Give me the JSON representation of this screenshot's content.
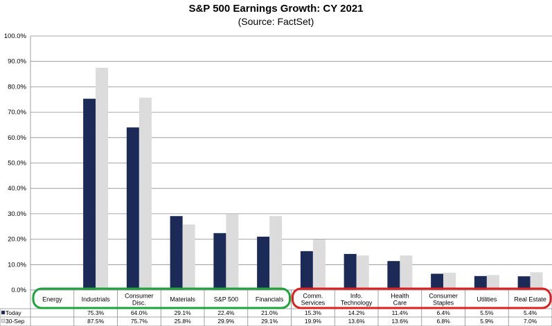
{
  "chart_data": {
    "type": "bar",
    "title": "S&P 500 Earnings Growth: CY 2021",
    "subtitle": "(Source: FactSet)",
    "categories": [
      [
        "Energy"
      ],
      [
        "Industrials"
      ],
      [
        "Consumer",
        "Disc."
      ],
      [
        "Materials"
      ],
      [
        "S&P 500"
      ],
      [
        "Financials"
      ],
      [
        "Comm.",
        "Services"
      ],
      [
        "Info.",
        "Technology"
      ],
      [
        "Health",
        "Care"
      ],
      [
        "Consumer",
        "Staples"
      ],
      [
        "Utilities"
      ],
      [
        "Real Estate"
      ]
    ],
    "series": [
      {
        "name": "Today",
        "color": "#1b2a57",
        "values": [
          null,
          75.3,
          64.0,
          29.1,
          22.4,
          21.0,
          15.3,
          14.2,
          11.4,
          6.4,
          5.5,
          5.4
        ],
        "labels": [
          "",
          "75.3%",
          "64.0%",
          "29.1%",
          "22.4%",
          "21.0%",
          "15.3%",
          "14.2%",
          "11.4%",
          "6.4%",
          "5.5%",
          "5.4%"
        ]
      },
      {
        "name": "30-Sep",
        "color": "#dcdcdc",
        "values": [
          null,
          87.5,
          75.7,
          25.8,
          29.9,
          29.1,
          19.9,
          13.6,
          13.6,
          6.8,
          5.9,
          7.0
        ],
        "labels": [
          "",
          "87.5%",
          "75.7%",
          "25.8%",
          "29.9%",
          "29.1%",
          "19.9%",
          "13.6%",
          "13.6%",
          "6.8%",
          "5.9%",
          "7.0%"
        ]
      }
    ],
    "ylim": [
      0,
      100
    ],
    "yticks": [
      0,
      10,
      20,
      30,
      40,
      50,
      60,
      70,
      80,
      90,
      100
    ],
    "ytick_labels": [
      "0.0%",
      "10.0%",
      "20.0%",
      "30.0%",
      "40.0%",
      "50.0%",
      "60.0%",
      "70.0%",
      "80.0%",
      "90.0%",
      "100.0%"
    ],
    "grid": true,
    "legend": "data-table",
    "highlight_colors": {
      "green": "#1aa53a",
      "red": "#e01e1e"
    }
  }
}
